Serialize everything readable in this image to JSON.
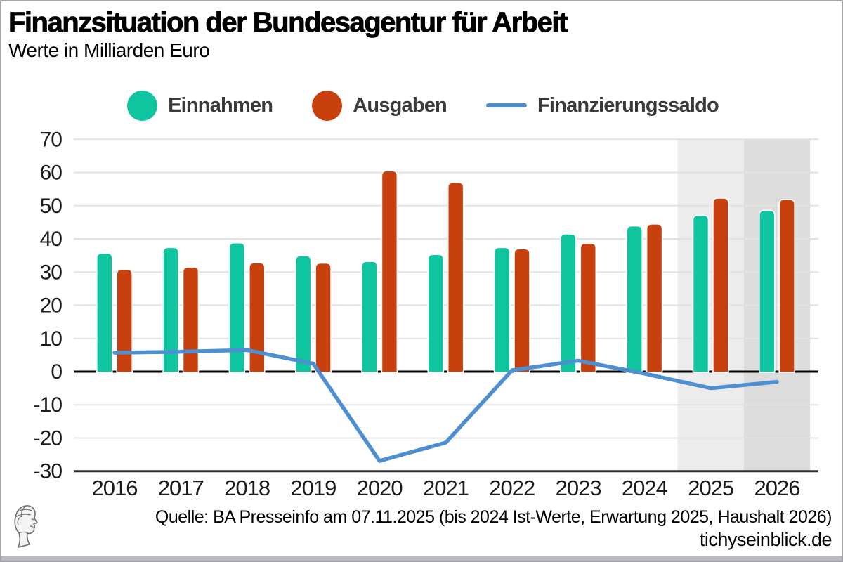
{
  "title": "Finanzsituation der Bundesagentur für Arbeit",
  "subtitle": "Werte in Milliarden Euro",
  "legend": [
    {
      "label": "Einnahmen",
      "swatch": "dot",
      "color": "#0fc5a0"
    },
    {
      "label": "Ausgaben",
      "swatch": "dot",
      "color": "#c8400e"
    },
    {
      "label": "Finanzierungssaldo",
      "swatch": "line",
      "color": "#4d8fd1"
    }
  ],
  "footer": {
    "source_line": "Quelle: BA Presseinfo am 07.11.2025 (bis 2024 Ist-Werte, Erwartung 2025, Haushalt 2026)",
    "website": "tichyseinblick.de",
    "logo": "tichys-einblick-classical-head"
  },
  "colors": {
    "einnahmen": "#0fc5a0",
    "ausgaben": "#c8400e",
    "saldo_line": "#4d8fd1",
    "band_2025": "#ececec",
    "band_2026": "#dcdcdc",
    "gridline": "#e2e2e2",
    "zero_line": "#000000",
    "bottom_line": "#2e2e2e",
    "axis_text": "#1b1b1b"
  },
  "chart_data": {
    "type": "bar",
    "title": "Finanzsituation der Bundesagentur für Arbeit",
    "xlabel": "",
    "ylabel": "Werte in Milliarden Euro",
    "categories": [
      "2016",
      "2017",
      "2018",
      "2019",
      "2020",
      "2021",
      "2022",
      "2023",
      "2024",
      "2025",
      "2026"
    ],
    "series": [
      {
        "name": "Einnahmen",
        "type": "bar",
        "color": "#0fc5a0",
        "values": [
          35.7,
          37.4,
          38.8,
          34.9,
          33.2,
          35.3,
          37.4,
          41.5,
          43.9,
          47.1,
          48.6
        ]
      },
      {
        "name": "Ausgaben",
        "type": "bar",
        "color": "#c8400e",
        "values": [
          30.8,
          31.5,
          32.8,
          32.7,
          60.5,
          57.0,
          37.0,
          38.7,
          44.5,
          52.3,
          51.9
        ]
      },
      {
        "name": "Finanzierungssaldo",
        "type": "line",
        "color": "#4d8fd1",
        "values": [
          5.7,
          6.0,
          6.5,
          2.4,
          -26.9,
          -21.4,
          0.4,
          3.3,
          -0.6,
          -5.0,
          -3.1
        ]
      }
    ],
    "ylim": [
      -30,
      70
    ],
    "yticks": [
      70,
      60,
      50,
      40,
      30,
      20,
      10,
      0,
      -10,
      -20,
      -30
    ],
    "grid": true,
    "legend_position": "top",
    "highlight_bands": [
      {
        "category": "2025",
        "color": "#ececec"
      },
      {
        "category": "2026",
        "color": "#dcdcdc"
      }
    ]
  }
}
